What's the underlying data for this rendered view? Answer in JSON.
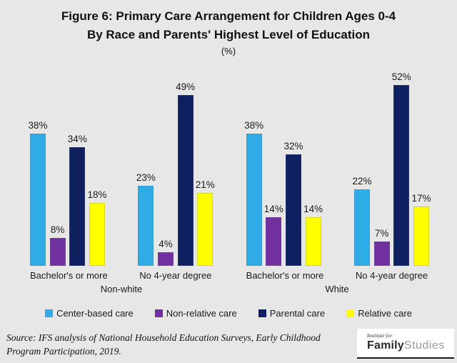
{
  "title": {
    "line1": "Figure 6: Primary Care Arrangement for Children Ages 0-4",
    "line2": "By Race and Parents' Highest Level of Education",
    "line3": "(%)"
  },
  "chart_data": {
    "type": "bar",
    "title": "Figure 6: Primary Care Arrangement for Children Ages 0-4 By Race and Parents' Highest Level of Education",
    "unit": "%",
    "categories": [
      "Bachelor's or more",
      "No 4-year degree",
      "Bachelor's or more",
      "No 4-year degree"
    ],
    "group_labels": [
      "Non-white",
      "White"
    ],
    "series": [
      {
        "name": "Center-based care",
        "color": "#2face6",
        "values": [
          38,
          23,
          38,
          22
        ]
      },
      {
        "name": "Non-relative care",
        "color": "#7030a0",
        "values": [
          8,
          4,
          14,
          7
        ]
      },
      {
        "name": "Parental care",
        "color": "#0f2060",
        "values": [
          34,
          49,
          32,
          52
        ]
      },
      {
        "name": "Relative care",
        "color": "#ffff00",
        "values": [
          18,
          21,
          14,
          17
        ]
      }
    ],
    "ylim": [
      0,
      58
    ],
    "grid": false,
    "value_labels": true,
    "legend_position": "bottom"
  },
  "footer": {
    "source_line1": "Source: IFS analysis of  National Household Education Surveys, Early Childhood",
    "source_line2": "Program Participation, 2019.",
    "logo": {
      "top": "Institute for",
      "bold": "Family",
      "light": "Studies"
    }
  }
}
